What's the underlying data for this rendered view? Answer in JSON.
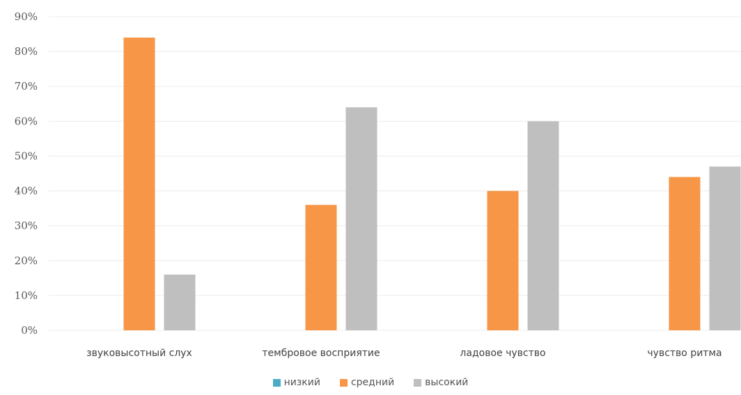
{
  "chart_data": {
    "type": "bar",
    "categories": [
      "звуковысотный слух",
      "тембровое восприятие",
      "ладовое чувство",
      "чувство ритма"
    ],
    "series": [
      {
        "name": "низкий",
        "color": "#4bacc6",
        "values": [
          0,
          0,
          0,
          0
        ]
      },
      {
        "name": "средний",
        "color": "#f79646",
        "values": [
          84,
          36,
          40,
          44
        ]
      },
      {
        "name": "высокий",
        "color": "#bfbfbf",
        "values": [
          16,
          64,
          60,
          47
        ]
      }
    ],
    "ylim": [
      0,
      90
    ],
    "y_ticks": [
      0,
      10,
      20,
      30,
      40,
      50,
      60,
      70,
      80,
      90
    ],
    "y_tick_labels": [
      "0%",
      "10%",
      "20%",
      "30%",
      "40%",
      "50%",
      "60%",
      "70%",
      "80%",
      "90%"
    ],
    "grid": true,
    "legend_position": "bottom",
    "title": "",
    "xlabel": "",
    "ylabel": ""
  }
}
